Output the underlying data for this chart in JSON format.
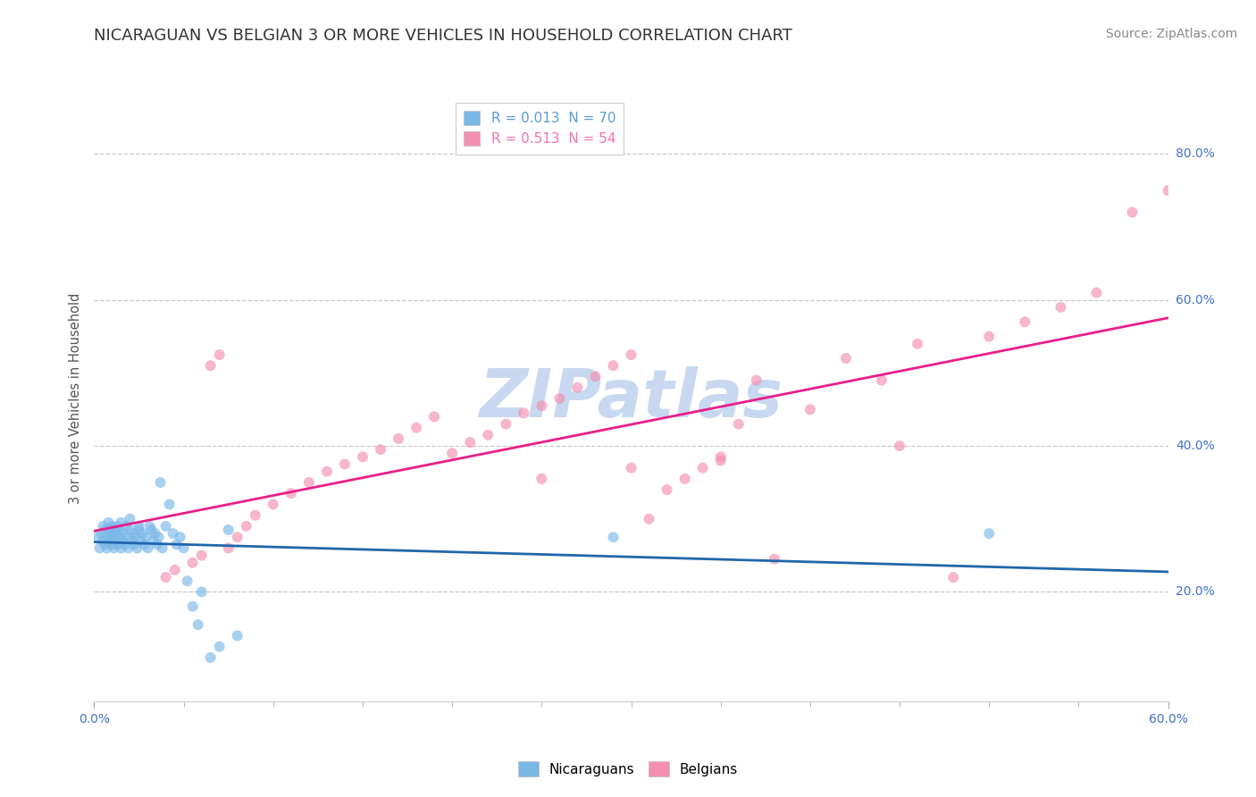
{
  "title": "NICARAGUAN VS BELGIAN 3 OR MORE VEHICLES IN HOUSEHOLD CORRELATION CHART",
  "source": "Source: ZipAtlas.com",
  "ylabel": "3 or more Vehicles in Household",
  "right_yticks": [
    "20.0%",
    "40.0%",
    "60.0%",
    "80.0%"
  ],
  "right_ytick_vals": [
    0.2,
    0.4,
    0.6,
    0.8
  ],
  "legend_entries": [
    {
      "label": "R = 0.013  N = 70",
      "color": "#5b9bd5"
    },
    {
      "label": "R = 0.513  N = 54",
      "color": "#f472b6"
    }
  ],
  "background_color": "#ffffff",
  "plot_bg_color": "#ffffff",
  "watermark": "ZIPatlas",
  "watermark_color": "#c8d8f0",
  "xlim": [
    0.0,
    0.6
  ],
  "ylim": [
    0.05,
    0.88
  ],
  "nicaraguan_x": [
    0.002,
    0.003,
    0.004,
    0.005,
    0.005,
    0.006,
    0.006,
    0.007,
    0.007,
    0.008,
    0.008,
    0.009,
    0.009,
    0.01,
    0.01,
    0.01,
    0.011,
    0.011,
    0.012,
    0.012,
    0.013,
    0.013,
    0.014,
    0.014,
    0.015,
    0.015,
    0.016,
    0.016,
    0.017,
    0.018,
    0.018,
    0.019,
    0.02,
    0.02,
    0.021,
    0.022,
    0.022,
    0.023,
    0.024,
    0.025,
    0.025,
    0.026,
    0.027,
    0.028,
    0.029,
    0.03,
    0.031,
    0.032,
    0.033,
    0.034,
    0.035,
    0.036,
    0.037,
    0.038,
    0.04,
    0.042,
    0.044,
    0.046,
    0.048,
    0.05,
    0.052,
    0.055,
    0.058,
    0.06,
    0.065,
    0.07,
    0.075,
    0.08,
    0.29,
    0.5
  ],
  "nicaraguan_y": [
    0.275,
    0.26,
    0.28,
    0.27,
    0.29,
    0.265,
    0.285,
    0.275,
    0.26,
    0.285,
    0.295,
    0.27,
    0.28,
    0.265,
    0.275,
    0.29,
    0.26,
    0.285,
    0.27,
    0.28,
    0.265,
    0.29,
    0.275,
    0.285,
    0.26,
    0.295,
    0.27,
    0.28,
    0.265,
    0.275,
    0.29,
    0.26,
    0.285,
    0.3,
    0.27,
    0.28,
    0.265,
    0.275,
    0.26,
    0.29,
    0.285,
    0.27,
    0.28,
    0.265,
    0.275,
    0.26,
    0.29,
    0.285,
    0.27,
    0.28,
    0.265,
    0.275,
    0.35,
    0.26,
    0.29,
    0.32,
    0.28,
    0.265,
    0.275,
    0.26,
    0.215,
    0.18,
    0.155,
    0.2,
    0.11,
    0.125,
    0.285,
    0.14,
    0.275,
    0.28
  ],
  "belgian_x": [
    0.04,
    0.045,
    0.055,
    0.06,
    0.065,
    0.07,
    0.075,
    0.08,
    0.085,
    0.09,
    0.1,
    0.11,
    0.12,
    0.13,
    0.14,
    0.15,
    0.16,
    0.17,
    0.18,
    0.19,
    0.2,
    0.21,
    0.22,
    0.23,
    0.24,
    0.25,
    0.26,
    0.27,
    0.28,
    0.29,
    0.3,
    0.31,
    0.32,
    0.33,
    0.34,
    0.35,
    0.36,
    0.37,
    0.38,
    0.4,
    0.42,
    0.44,
    0.46,
    0.48,
    0.5,
    0.52,
    0.54,
    0.56,
    0.58,
    0.6,
    0.25,
    0.3,
    0.35,
    0.45
  ],
  "belgian_y": [
    0.22,
    0.23,
    0.24,
    0.25,
    0.51,
    0.525,
    0.26,
    0.275,
    0.29,
    0.305,
    0.32,
    0.335,
    0.35,
    0.365,
    0.375,
    0.385,
    0.395,
    0.41,
    0.425,
    0.44,
    0.39,
    0.405,
    0.415,
    0.43,
    0.445,
    0.455,
    0.465,
    0.48,
    0.495,
    0.51,
    0.525,
    0.3,
    0.34,
    0.355,
    0.37,
    0.38,
    0.43,
    0.49,
    0.245,
    0.45,
    0.52,
    0.49,
    0.54,
    0.22,
    0.55,
    0.57,
    0.59,
    0.61,
    0.72,
    0.75,
    0.355,
    0.37,
    0.385,
    0.4
  ],
  "dot_size": 75,
  "dot_alpha": 0.65,
  "nicaraguan_color": "#7ab8e8",
  "belgian_color": "#f48fb1",
  "trend_nicaraguan_color": "#2166ac",
  "trend_belgian_color": "#e91e8c",
  "grid_color": "#c8c8c8",
  "title_fontsize": 13,
  "axis_label_fontsize": 10.5,
  "tick_fontsize": 10,
  "source_fontsize": 10
}
